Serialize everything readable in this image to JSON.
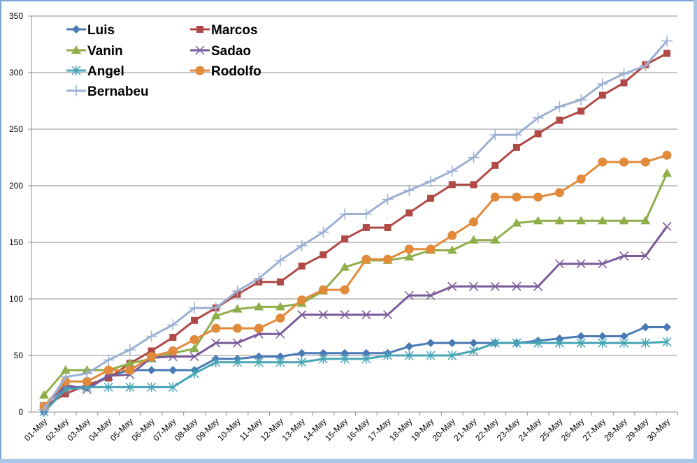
{
  "chart_data": {
    "type": "line",
    "title": "",
    "xlabel": "",
    "ylabel": "",
    "ylim": [
      0,
      350
    ],
    "yticks": [
      0,
      50,
      100,
      150,
      200,
      250,
      300,
      350
    ],
    "grid": "horizontal",
    "legend_position": "top-left",
    "categories": [
      "01-May",
      "02-May",
      "03-May",
      "04-May",
      "05-May",
      "06-May",
      "07-May",
      "08-May",
      "09-May",
      "10-May",
      "11-May",
      "12-May",
      "13-May",
      "14-May",
      "15-May",
      "16-May",
      "17-May",
      "18-May",
      "19-May",
      "20-May",
      "21-May",
      "22-May",
      "23-May",
      "24-May",
      "25-May",
      "26-May",
      "27-May",
      "28-May",
      "29-May",
      "30-May"
    ],
    "series": [
      {
        "name": "Luis",
        "color": "#4a7ab5",
        "marker": "diamond",
        "values": [
          0,
          22,
          22,
          32,
          37,
          37,
          37,
          37,
          47,
          47,
          49,
          49,
          52,
          52,
          52,
          52,
          52,
          58,
          61,
          61,
          61,
          61,
          61,
          63,
          65,
          67,
          67,
          67,
          75,
          75
        ]
      },
      {
        "name": "Marcos",
        "color": "#b04a46",
        "marker": "square",
        "values": [
          5,
          16,
          24,
          30,
          43,
          54,
          66,
          81,
          92,
          104,
          115,
          115,
          129,
          139,
          153,
          163,
          163,
          176,
          189,
          201,
          201,
          218,
          234,
          246,
          258,
          266,
          280,
          291,
          307,
          317
        ]
      },
      {
        "name": "Vanin",
        "color": "#8fae4a",
        "marker": "triangle",
        "values": [
          15,
          37,
          37,
          37,
          43,
          47,
          52,
          56,
          85,
          91,
          93,
          93,
          96,
          107,
          128,
          134,
          134,
          137,
          143,
          143,
          152,
          152,
          167,
          169,
          169,
          169,
          169,
          169,
          169,
          211
        ]
      },
      {
        "name": "Sadao",
        "color": "#7a5a9a",
        "marker": "x",
        "values": [
          5,
          24,
          20,
          32,
          33,
          48,
          49,
          49,
          61,
          61,
          69,
          69,
          86,
          86,
          86,
          86,
          86,
          103,
          103,
          111,
          111,
          111,
          111,
          111,
          131,
          131,
          131,
          138,
          138,
          164
        ]
      },
      {
        "name": "Angel",
        "color": "#46a4b4",
        "marker": "star",
        "values": [
          0,
          20,
          22,
          22,
          22,
          22,
          22,
          34,
          44,
          44,
          44,
          44,
          44,
          47,
          47,
          47,
          50,
          50,
          50,
          50,
          54,
          61,
          61,
          61,
          61,
          61,
          61,
          61,
          61,
          62
        ]
      },
      {
        "name": "Rodolfo",
        "color": "#e18a3a",
        "marker": "circle",
        "values": [
          5,
          27,
          27,
          37,
          37,
          49,
          54,
          64,
          74,
          74,
          74,
          83,
          99,
          108,
          108,
          135,
          135,
          144,
          144,
          156,
          168,
          190,
          190,
          190,
          194,
          206,
          221,
          221,
          221,
          227
        ]
      },
      {
        "name": "Bernabeu",
        "color": "#9bb0d2",
        "marker": "plus",
        "values": [
          2,
          31,
          34,
          46,
          55,
          67,
          77,
          92,
          92,
          107,
          118,
          134,
          147,
          159,
          175,
          175,
          188,
          196,
          204,
          213,
          225,
          245,
          245,
          260,
          270,
          276,
          290,
          299,
          306,
          328
        ]
      }
    ]
  }
}
